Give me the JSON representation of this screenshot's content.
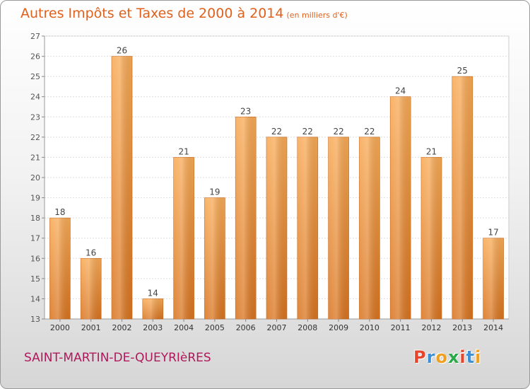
{
  "chart_data": {
    "type": "bar",
    "title": "Autres Impôts et Taxes de 2000 à 2014",
    "unit_label": "(en milliers d'€)",
    "categories": [
      "2000",
      "2001",
      "2002",
      "2003",
      "2004",
      "2005",
      "2006",
      "2007",
      "2008",
      "2009",
      "2010",
      "2011",
      "2012",
      "2013",
      "2014"
    ],
    "values": [
      18,
      16,
      26,
      14,
      21,
      19,
      23,
      22,
      22,
      22,
      22,
      24,
      21,
      25,
      17
    ],
    "ylim": [
      13,
      27
    ],
    "yticks": [
      13,
      14,
      15,
      16,
      17,
      18,
      19,
      20,
      21,
      22,
      23,
      24,
      25,
      26,
      27
    ],
    "grid": true,
    "bar_color": "#f5a04a",
    "xlabel": "",
    "ylabel": ""
  },
  "footer": {
    "city": "SAINT-MARTIN-DE-QUEYRIèRES",
    "logo_letters": [
      "P",
      "r",
      "o",
      "x",
      "i",
      "t",
      "i"
    ],
    "logo_colors": [
      "#e8452c",
      "#3d8fd6",
      "#f0a020",
      "#2aa84a",
      "#e8452c",
      "#3d8fd6",
      "#f0a020"
    ]
  }
}
